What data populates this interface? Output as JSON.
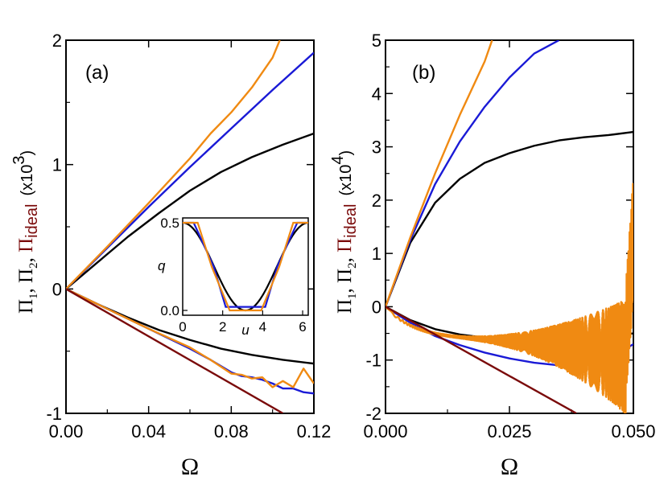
{
  "colors": {
    "black": "#000000",
    "blue": "#1a1ad6",
    "orange": "#f08a12",
    "dark_red": "#7a0a0a"
  },
  "chart_data": [
    {
      "type": "line",
      "panel_label": "(a)",
      "xlabel": "Ω",
      "ylabel": {
        "pi1": "Π",
        "pi1_sub": "1",
        "pi2": "Π",
        "pi2_sub": "2",
        "pi_ideal": "Π",
        "pi_ideal_sub": "ideal",
        "sep": ", ",
        "scale_prefix": "(x10",
        "scale_exp": "3",
        "scale_suffix": ")"
      },
      "xlim": [
        0.0,
        0.12
      ],
      "ylim": [
        -1,
        2
      ],
      "xticks": [
        "0.00",
        "0.04",
        "0.08",
        "0.12"
      ],
      "yticks": [
        "-1",
        "0",
        "1",
        "2"
      ],
      "series": [
        {
          "color": "black",
          "x": [
            0,
            0.015,
            0.03,
            0.045,
            0.06,
            0.075,
            0.09,
            0.105,
            0.12
          ],
          "y": [
            0,
            0.21,
            0.42,
            0.61,
            0.79,
            0.94,
            1.06,
            1.16,
            1.25
          ]
        },
        {
          "color": "blue",
          "x": [
            0,
            0.02,
            0.04,
            0.06,
            0.08,
            0.1,
            0.12
          ],
          "y": [
            0,
            0.33,
            0.66,
            0.98,
            1.29,
            1.6,
            1.9
          ]
        },
        {
          "color": "orange",
          "x": [
            0,
            0.02,
            0.04,
            0.06,
            0.07,
            0.08,
            0.09,
            0.1,
            0.1035
          ],
          "y": [
            0,
            0.34,
            0.69,
            1.05,
            1.25,
            1.42,
            1.62,
            1.86,
            2.0
          ]
        },
        {
          "color": "black",
          "x": [
            0,
            0.015,
            0.03,
            0.045,
            0.06,
            0.075,
            0.09,
            0.105,
            0.12
          ],
          "y": [
            0,
            -0.12,
            -0.23,
            -0.33,
            -0.41,
            -0.48,
            -0.53,
            -0.57,
            -0.6
          ]
        },
        {
          "color": "blue",
          "x": [
            0,
            0.02,
            0.04,
            0.06,
            0.07,
            0.08,
            0.085,
            0.09,
            0.095,
            0.1,
            0.105,
            0.11,
            0.115,
            0.12
          ],
          "y": [
            0,
            -0.16,
            -0.32,
            -0.48,
            -0.57,
            -0.67,
            -0.7,
            -0.71,
            -0.73,
            -0.76,
            -0.8,
            -0.8,
            -0.83,
            -0.84
          ]
        },
        {
          "color": "orange",
          "x": [
            0,
            0.02,
            0.04,
            0.06,
            0.07,
            0.08,
            0.085,
            0.09,
            0.095,
            0.1,
            0.105,
            0.11,
            0.115,
            0.12
          ],
          "y": [
            0,
            -0.16,
            -0.32,
            -0.47,
            -0.57,
            -0.68,
            -0.69,
            -0.72,
            -0.71,
            -0.79,
            -0.74,
            -0.79,
            -0.64,
            -0.76
          ]
        },
        {
          "color": "dark_red",
          "x": [
            0,
            0.105
          ],
          "y": [
            0,
            -1.0
          ]
        }
      ],
      "inset": {
        "xlabel": "u",
        "ylabel": "q",
        "xlim": [
          0,
          6.28
        ],
        "ylim": [
          0,
          0.5
        ],
        "xticks": [
          "0",
          "2",
          "4",
          "6"
        ],
        "yticks": [
          "0.0",
          "0.5"
        ],
        "series": [
          {
            "color": "black",
            "shape": "cosine"
          },
          {
            "color": "blue",
            "x": [
              0,
              0.55,
              1.55,
              2.15,
              3.14,
              4.13,
              4.73,
              5.73,
              6.28
            ],
            "y": [
              0.5,
              0.5,
              0.25,
              0.02,
              0.02,
              0.02,
              0.25,
              0.5,
              0.5
            ]
          },
          {
            "color": "orange",
            "x": [
              0,
              0.75,
              1.45,
              2.35,
              3.14,
              3.93,
              4.83,
              5.53,
              6.28
            ],
            "y": [
              0.5,
              0.5,
              0.25,
              0.0,
              0.0,
              0.0,
              0.25,
              0.5,
              0.5
            ]
          }
        ]
      }
    },
    {
      "type": "line",
      "panel_label": "(b)",
      "xlabel": "Ω",
      "ylabel": {
        "pi1": "Π",
        "pi1_sub": "1",
        "pi2": "Π",
        "pi2_sub": "2",
        "pi_ideal": "Π",
        "pi_ideal_sub": "ideal",
        "sep": ", ",
        "scale_prefix": "(x10",
        "scale_exp": "4",
        "scale_suffix": ")"
      },
      "xlim": [
        0.0,
        0.05
      ],
      "ylim": [
        -2,
        5
      ],
      "xticks": [
        "0.000",
        "0.025",
        "0.050"
      ],
      "yticks": [
        "-2",
        "-1",
        "0",
        "1",
        "2",
        "3",
        "4",
        "5"
      ],
      "series": [
        {
          "color": "black",
          "x": [
            0,
            0.005,
            0.01,
            0.015,
            0.02,
            0.025,
            0.03,
            0.035,
            0.04,
            0.045,
            0.05
          ],
          "y": [
            0,
            1.2,
            1.95,
            2.4,
            2.7,
            2.88,
            3.02,
            3.12,
            3.18,
            3.22,
            3.28
          ]
        },
        {
          "color": "blue",
          "x": [
            0,
            0.005,
            0.01,
            0.015,
            0.02,
            0.025,
            0.03,
            0.035
          ],
          "y": [
            0,
            1.25,
            2.3,
            3.1,
            3.75,
            4.3,
            4.75,
            5.0
          ]
        },
        {
          "color": "orange",
          "x": [
            0,
            0.005,
            0.01,
            0.015,
            0.02,
            0.0215
          ],
          "y": [
            0,
            1.3,
            2.5,
            3.6,
            4.6,
            5.0
          ]
        },
        {
          "color": "black",
          "x": [
            0,
            0.005,
            0.01,
            0.015,
            0.02,
            0.025,
            0.03,
            0.035,
            0.04,
            0.045,
            0.05
          ],
          "y": [
            0,
            -0.25,
            -0.42,
            -0.52,
            -0.58,
            -0.61,
            -0.62,
            -0.62,
            -0.6,
            -0.55,
            -0.5
          ]
        },
        {
          "color": "blue",
          "x": [
            0,
            0.005,
            0.01,
            0.015,
            0.02,
            0.025,
            0.03,
            0.035,
            0.04,
            0.045,
            0.05
          ],
          "y": [
            0,
            -0.3,
            -0.55,
            -0.72,
            -0.86,
            -0.97,
            -1.05,
            -1.1,
            -1.05,
            -1.0,
            -0.7
          ]
        },
        {
          "color": "orange",
          "shape": "oscillating"
        },
        {
          "color": "dark_red",
          "x": [
            0,
            0.0385
          ],
          "y": [
            0,
            -2.0
          ]
        }
      ]
    }
  ]
}
